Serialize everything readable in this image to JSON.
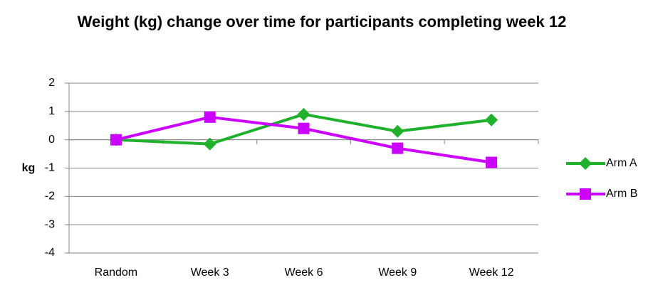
{
  "chart_data": {
    "type": "line",
    "title": "Weight (kg) change over time for participants completing week 12",
    "y_label": "kg",
    "categories": [
      "Random",
      "Week 3",
      "Week 6",
      "Week 9",
      "Week 12"
    ],
    "series": [
      {
        "name": "Arm A",
        "color": "#1fb02c",
        "marker": "diamond",
        "values": [
          0,
          -0.15,
          0.9,
          0.3,
          0.7
        ]
      },
      {
        "name": "Arm B",
        "color": "#cc00ff",
        "marker": "square",
        "values": [
          0,
          0.8,
          0.4,
          -0.3,
          -0.8
        ]
      }
    ],
    "ylim": [
      -4,
      2
    ],
    "yticks": [
      -4,
      -3,
      -2,
      -1,
      0,
      1,
      2
    ],
    "grid": true,
    "legend": "right"
  }
}
